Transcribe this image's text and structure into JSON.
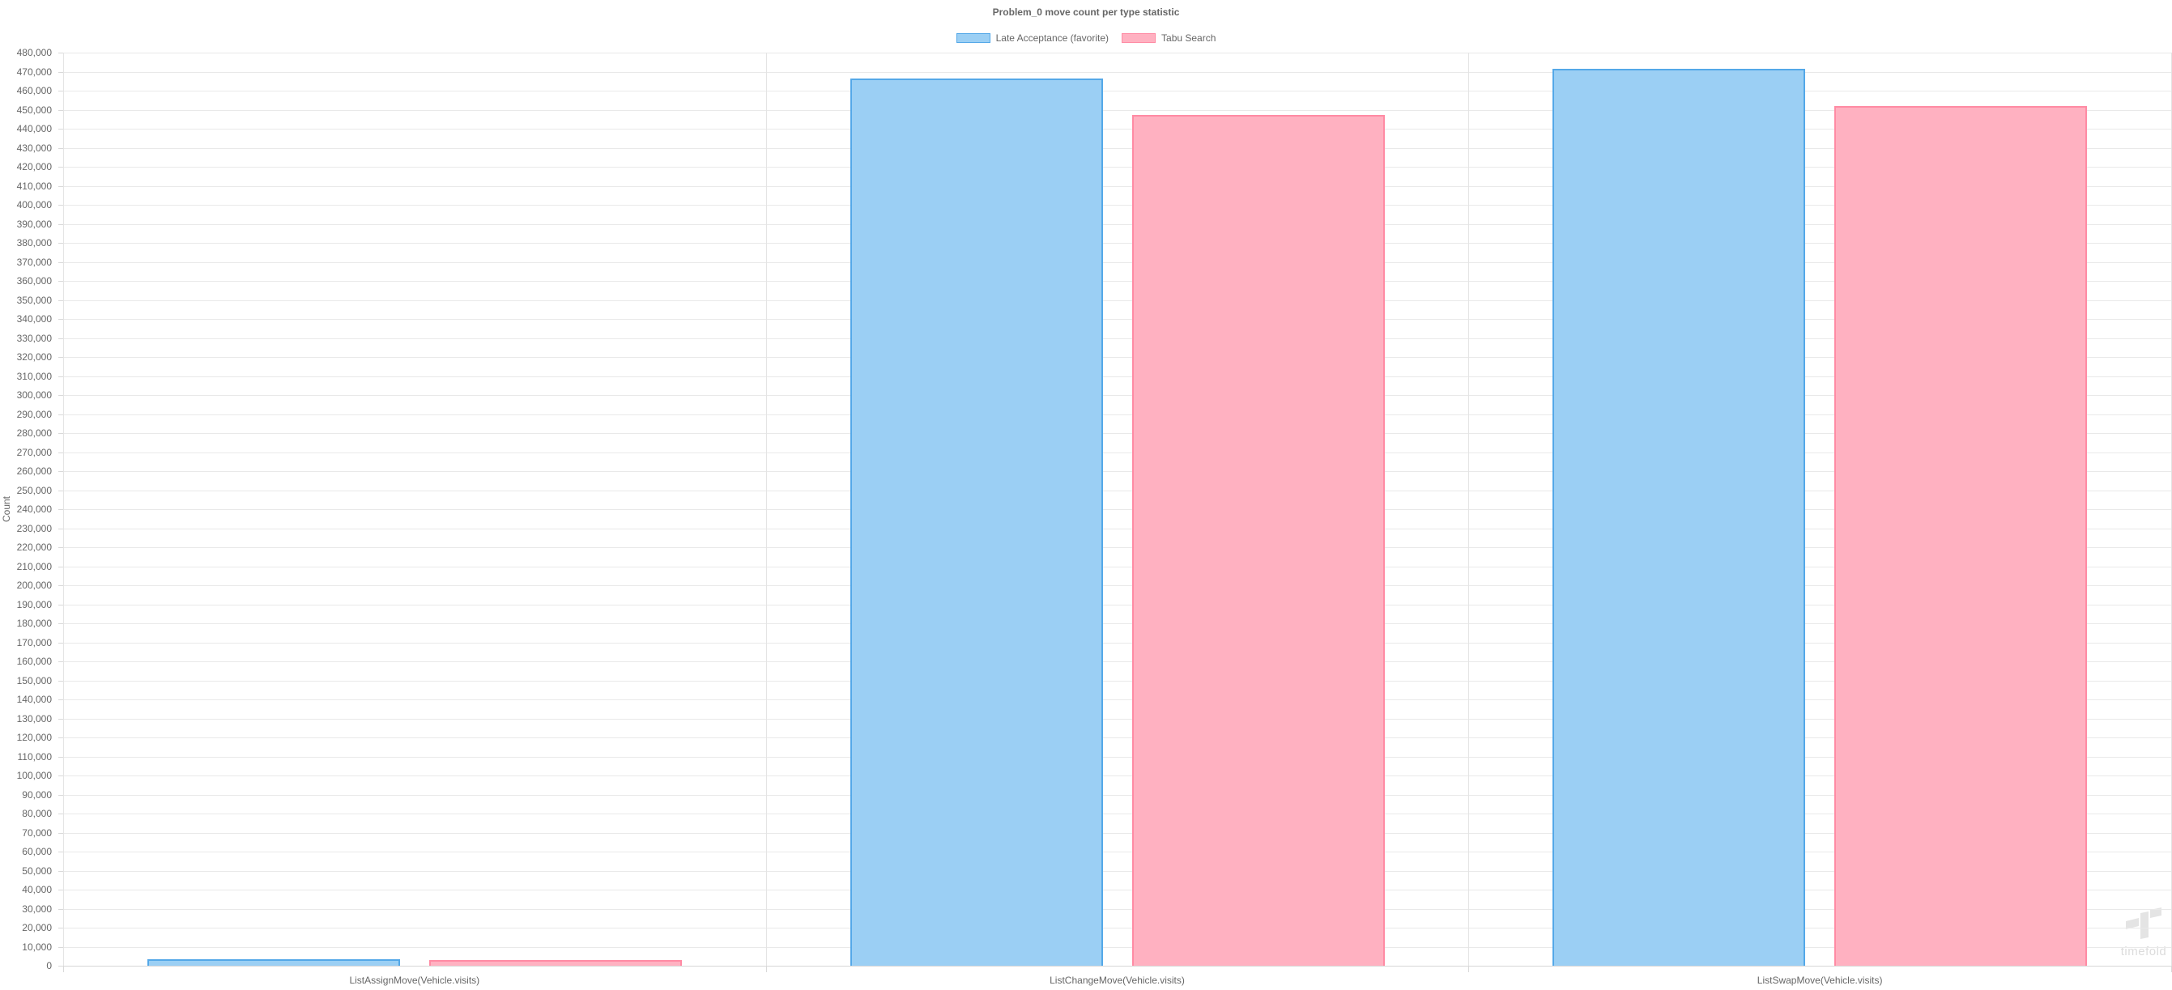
{
  "title": "Problem_0 move count per type statistic",
  "y_axis_title": "Count",
  "watermark": {
    "text": "timefold"
  },
  "colors": {
    "grid": "#e9e9e9",
    "axis": "#d6d6d6",
    "label_text": "#666666",
    "watermark_gray": "#e4e4e4",
    "blue_fill": "#9bcff4",
    "blue_border": "#54a8e8",
    "pink_fill": "#ffb1c1",
    "pink_border": "#ff8ba4"
  },
  "chart_data": {
    "type": "bar",
    "title": "Problem_0 move count per type statistic",
    "categories": [
      "ListAssignMove(Vehicle.visits)",
      "ListChangeMove(Vehicle.visits)",
      "ListSwapMove(Vehicle.visits)"
    ],
    "series": [
      {
        "name": "Late Acceptance (favorite)",
        "values": [
          3200,
          466500,
          471700
        ],
        "fill": "#9bcff4",
        "border": "#54a8e8"
      },
      {
        "name": "Tabu Search",
        "values": [
          2800,
          447400,
          452100
        ],
        "fill": "#ffb1c1",
        "border": "#ff8ba4"
      }
    ],
    "xlabel": "",
    "ylabel": "Count",
    "ylim": [
      0,
      480000
    ],
    "ytick_step": 10000,
    "grid": true,
    "legend_position": "top-center"
  }
}
